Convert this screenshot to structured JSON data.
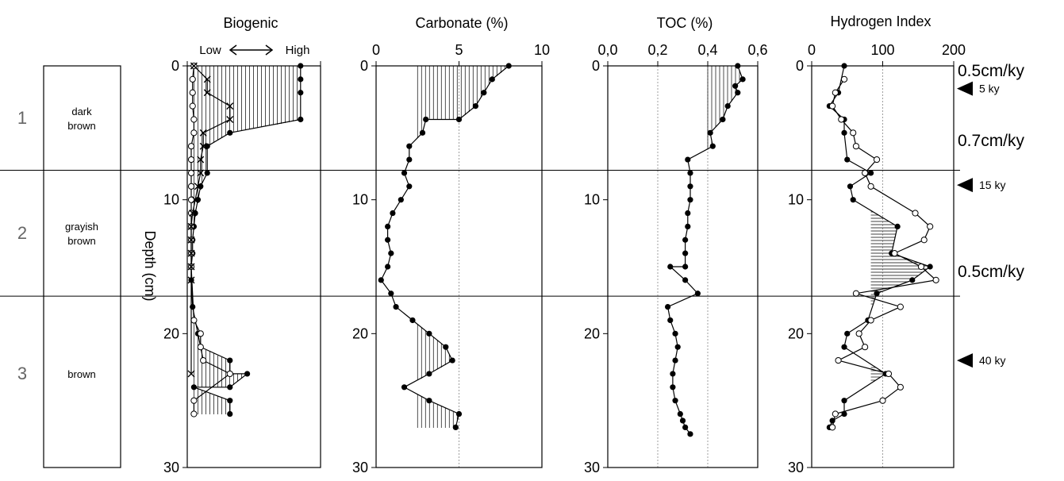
{
  "depth_axis": {
    "label": "Depth (cm)",
    "range": [
      0,
      30
    ],
    "ticks": [
      "0",
      "10",
      "20",
      "30"
    ]
  },
  "boundaries_cm": [
    7.8,
    17.2
  ],
  "lithology": [
    {
      "number": "1",
      "label_lines": [
        "dark",
        "brown"
      ]
    },
    {
      "number": "2",
      "label_lines": [
        "grayish",
        "brown"
      ]
    },
    {
      "number": "3",
      "label_lines": [
        "brown"
      ]
    }
  ],
  "rates": [
    "0.5cm/ky",
    "0.7cm/ky",
    "0.5cm/ky"
  ],
  "rate_depths_cm": [
    0.3,
    5.5,
    15.3
  ],
  "ages": [
    {
      "label": "5 ky",
      "depth_cm": 1.7
    },
    {
      "label": "15 ky",
      "depth_cm": 8.9
    },
    {
      "label": "40 ky",
      "depth_cm": 22.0
    }
  ],
  "chart_data": [
    {
      "type": "line",
      "title": "Biogenic",
      "scale_label": "Low",
      "scale_label_high": "High",
      "xlim": [
        0,
        10
      ],
      "shade_reference": 0.5,
      "series": [
        {
          "marker": "filled",
          "x": [
            8.5,
            8.5,
            8.5,
            8.5,
            3.2,
            1.5,
            1.5,
            1.0,
            0.8,
            0.6,
            0.5,
            0.4,
            0.4,
            0.3,
            0.3,
            0.4,
            0.8,
            1.0,
            3.2,
            3.2,
            4.5,
            3.2,
            0.5,
            3.2,
            3.2
          ],
          "y": [
            0,
            1,
            2,
            4,
            5,
            6,
            8,
            9,
            10,
            11,
            12,
            13,
            14,
            15,
            16,
            18,
            20,
            21,
            22,
            23,
            23,
            24,
            24,
            25,
            26
          ]
        },
        {
          "marker": "open",
          "x": [
            0.5,
            0.4,
            0.4,
            0.4,
            0.5,
            0.5,
            0.3,
            0.3,
            0.3,
            0.3,
            0.3,
            0.3,
            0.3,
            0.3,
            0.3,
            0.3,
            0.5,
            1.0,
            1.0,
            1.2,
            3.2,
            0.5,
            0.5
          ],
          "y": [
            0,
            1,
            2,
            3,
            4,
            5,
            6,
            7,
            8,
            9,
            10,
            11,
            12,
            13,
            14,
            15,
            19,
            20,
            21,
            22,
            23,
            25,
            26
          ]
        },
        {
          "marker": "cross",
          "x": [
            0.5,
            1.5,
            1.5,
            3.2,
            3.2,
            1.2,
            1.2,
            1.0,
            1.0,
            0.8,
            0.6,
            0.4,
            0.3,
            0.3,
            0.3,
            0.3,
            0.3,
            0.3
          ],
          "y": [
            0,
            1,
            2,
            3,
            4,
            5,
            6,
            7,
            8,
            9,
            10,
            11,
            12,
            13,
            14,
            15,
            16,
            23
          ]
        }
      ]
    },
    {
      "type": "line",
      "title": "Carbonate (%)",
      "xlim": [
        0,
        10
      ],
      "ticks": [
        "0",
        "5",
        "10"
      ],
      "shade_reference": 2.5,
      "series": [
        {
          "marker": "filled",
          "x": [
            8.0,
            7.0,
            6.5,
            6.0,
            5.0,
            3.0,
            2.8,
            2.0,
            2.0,
            1.7,
            2.0,
            1.5,
            1.0,
            0.7,
            0.7,
            0.9,
            0.7,
            0.3,
            0.9,
            1.2,
            2.2,
            3.2,
            4.2,
            4.6,
            3.2,
            1.7,
            3.2,
            5.0,
            4.8
          ],
          "y": [
            0,
            1,
            2,
            3,
            4,
            4,
            5,
            6,
            7,
            8,
            9,
            10,
            11,
            12,
            13,
            14,
            15,
            16,
            17,
            18,
            19,
            20,
            21,
            22,
            23,
            24,
            25,
            26,
            27
          ]
        }
      ]
    },
    {
      "type": "line",
      "title": "TOC (%)",
      "xlim": [
        0,
        0.6
      ],
      "ticks": [
        "0,0",
        "0,2",
        "0,4",
        "0,6"
      ],
      "shade_reference": 0.4,
      "series": [
        {
          "marker": "filled",
          "x": [
            0.52,
            0.54,
            0.51,
            0.52,
            0.48,
            0.46,
            0.41,
            0.42,
            0.32,
            0.33,
            0.33,
            0.33,
            0.32,
            0.32,
            0.31,
            0.31,
            0.31,
            0.25,
            0.31,
            0.36,
            0.24,
            0.25,
            0.27,
            0.28,
            0.27,
            0.26,
            0.26,
            0.27,
            0.29,
            0.3,
            0.31,
            0.33
          ],
          "y": [
            0,
            1,
            1.5,
            2,
            3,
            4,
            5,
            6,
            7,
            8,
            9,
            10,
            11,
            12,
            13,
            14,
            15,
            15,
            16,
            17,
            18,
            19,
            20,
            21,
            22,
            23,
            24,
            25,
            26,
            26.5,
            27,
            27.5
          ]
        }
      ]
    },
    {
      "type": "line",
      "title": "Hydrogen Index",
      "xlim": [
        0,
        240
      ],
      "ticks": [
        "0",
        "100",
        "200"
      ],
      "shade_reference": 100,
      "series": [
        {
          "marker": "filled",
          "x": [
            55,
            45,
            30,
            55,
            55,
            60,
            100,
            65,
            70,
            145,
            135,
            200,
            170,
            110,
            95,
            60,
            55,
            125,
            55,
            55,
            35,
            30
          ],
          "y": [
            0,
            2,
            3,
            4,
            5,
            7,
            8,
            9,
            10,
            12,
            14,
            15,
            16,
            17,
            19,
            20,
            21,
            23,
            25,
            26,
            26.5,
            27
          ]
        },
        {
          "marker": "open",
          "x": [
            55,
            40,
            35,
            50,
            70,
            75,
            110,
            90,
            100,
            175,
            200,
            190,
            140,
            185,
            210,
            75,
            150,
            100,
            80,
            90,
            45,
            130,
            150,
            120,
            40,
            35
          ],
          "y": [
            1,
            2,
            3,
            4,
            5,
            6,
            7,
            8,
            9,
            11,
            12,
            13,
            14,
            15,
            16,
            17,
            18,
            19,
            20,
            21,
            22,
            23,
            24,
            25,
            26,
            27
          ]
        }
      ]
    }
  ]
}
